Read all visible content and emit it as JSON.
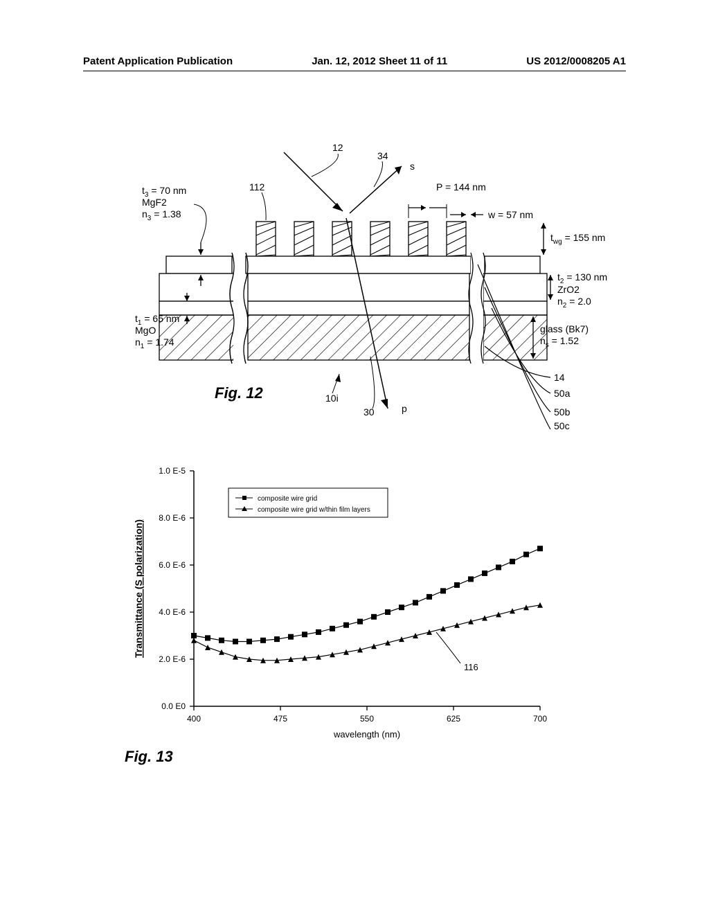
{
  "header": {
    "left": "Patent Application Publication",
    "center": "Jan. 12, 2012  Sheet 11 of 11",
    "right": "US 2012/0008205 A1"
  },
  "fig12": {
    "caption": "Fig. 12",
    "ref_12": "12",
    "ref_34": "34",
    "ref_s": "s",
    "ref_p": "p",
    "ref_10i": "10i",
    "ref_30": "30",
    "ref_14": "14",
    "ref_50a": "50a",
    "ref_50b": "50b",
    "ref_50c": "50c",
    "ref_112": "112",
    "ref_116": "116",
    "p_label": "P = 144 nm",
    "w_label": "w = 57 nm",
    "twg_label": "t",
    "twg_sub": "wg",
    "twg_val": " = 155 nm",
    "t2_label": "t",
    "t2_sub": "2",
    "t2_val": " = 130 nm",
    "zro2": "ZrO2",
    "n2": "n",
    "n2_sub": "2",
    "n2_val": " = 2.0",
    "glass": "glass (Bk7)",
    "ns": "n",
    "ns_sub": "s",
    "ns_val": " = 1.52",
    "t3_a": "t",
    "t3_sub": "3",
    "t3_val": " = 70 nm",
    "mgf2": "MgF2",
    "n3": "n",
    "n3_sub": "3",
    "n3_val": " = 1.38",
    "t1_a": "t",
    "t1_sub": "1",
    "t1_val": " = 65 nm",
    "mgo": "MgO",
    "n1": "n",
    "n1_sub": "1",
    "n1_val": " = 1.74",
    "colors": {
      "line": "#000000",
      "bg": "#ffffff"
    }
  },
  "fig13": {
    "caption": "Fig. 13",
    "ytitle": "Transmittance (S polarization)",
    "xtitle": "wavelength (nm)",
    "xticks": [
      400,
      475,
      550,
      625,
      700
    ],
    "yticks": [
      "0.0 E0",
      "2.0 E-6",
      "4.0 E-6",
      "6.0 E-6",
      "8.0 E-6",
      "1.0 E-5"
    ],
    "xlim": [
      400,
      700
    ],
    "ylim": [
      0,
      1e-05
    ],
    "legend": {
      "s1": "composite wire grid",
      "s2": "composite wire grid w/thin film layers"
    },
    "series1_marker": "square",
    "series2_marker": "triangle",
    "series1_color": "#000000",
    "series2_color": "#000000",
    "line_width": 1.2,
    "marker_size": 4,
    "background_color": "#ffffff",
    "ref_116": "116",
    "series1": [
      [
        400,
        3e-06
      ],
      [
        412,
        2.9e-06
      ],
      [
        424,
        2.8e-06
      ],
      [
        436,
        2.75e-06
      ],
      [
        448,
        2.75e-06
      ],
      [
        460,
        2.8e-06
      ],
      [
        472,
        2.85e-06
      ],
      [
        484,
        2.95e-06
      ],
      [
        496,
        3.05e-06
      ],
      [
        508,
        3.15e-06
      ],
      [
        520,
        3.3e-06
      ],
      [
        532,
        3.45e-06
      ],
      [
        544,
        3.6e-06
      ],
      [
        556,
        3.8e-06
      ],
      [
        568,
        4e-06
      ],
      [
        580,
        4.2e-06
      ],
      [
        592,
        4.4e-06
      ],
      [
        604,
        4.65e-06
      ],
      [
        616,
        4.9e-06
      ],
      [
        628,
        5.15e-06
      ],
      [
        640,
        5.4e-06
      ],
      [
        652,
        5.65e-06
      ],
      [
        664,
        5.9e-06
      ],
      [
        676,
        6.15e-06
      ],
      [
        688,
        6.45e-06
      ],
      [
        700,
        6.7e-06
      ]
    ],
    "series2": [
      [
        400,
        2.8e-06
      ],
      [
        412,
        2.5e-06
      ],
      [
        424,
        2.3e-06
      ],
      [
        436,
        2.1e-06
      ],
      [
        448,
        2e-06
      ],
      [
        460,
        1.95e-06
      ],
      [
        472,
        1.95e-06
      ],
      [
        484,
        2e-06
      ],
      [
        496,
        2.05e-06
      ],
      [
        508,
        2.1e-06
      ],
      [
        520,
        2.2e-06
      ],
      [
        532,
        2.3e-06
      ],
      [
        544,
        2.4e-06
      ],
      [
        556,
        2.55e-06
      ],
      [
        568,
        2.7e-06
      ],
      [
        580,
        2.85e-06
      ],
      [
        592,
        3e-06
      ],
      [
        604,
        3.15e-06
      ],
      [
        616,
        3.3e-06
      ],
      [
        628,
        3.45e-06
      ],
      [
        640,
        3.6e-06
      ],
      [
        652,
        3.75e-06
      ],
      [
        664,
        3.9e-06
      ],
      [
        676,
        4.05e-06
      ],
      [
        688,
        4.2e-06
      ],
      [
        700,
        4.3e-06
      ]
    ]
  }
}
